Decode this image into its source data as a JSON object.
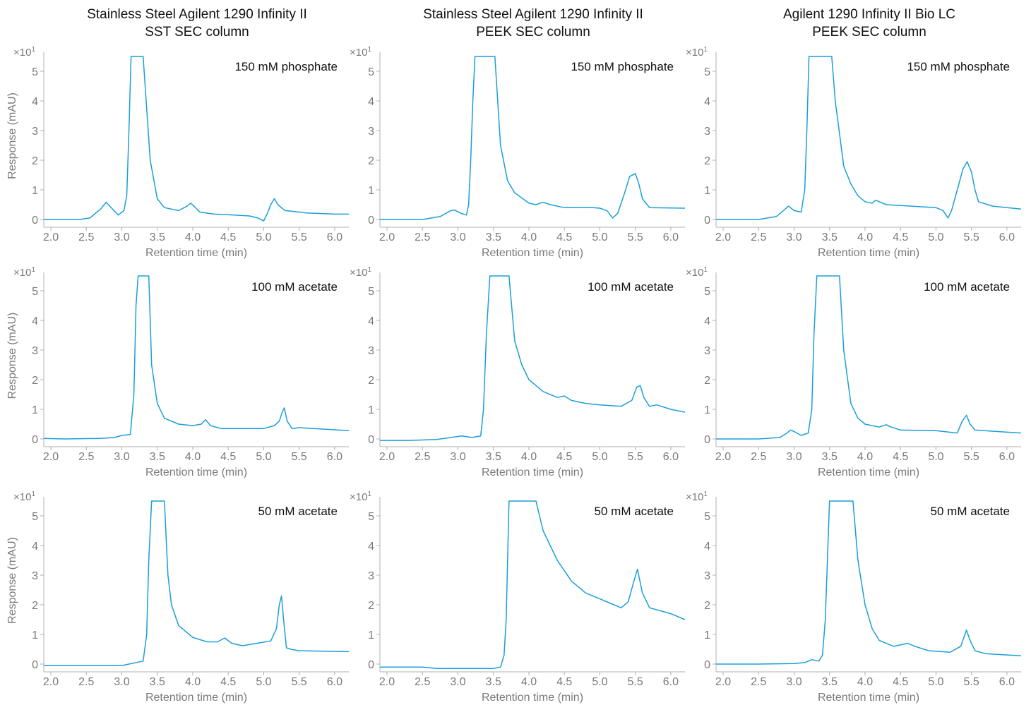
{
  "figure": {
    "columns": [
      {
        "title_line1": "Stainless Steel Agilent 1290 Infinity II",
        "title_line2": "SST SEC column"
      },
      {
        "title_line1": "Stainless Steel Agilent 1290 Infinity II",
        "title_line2": "PEEK SEC column"
      },
      {
        "title_line1": "Agilent 1290 Infinity II Bio LC",
        "title_line2": "PEEK SEC column"
      }
    ],
    "rows": [
      "150 mM phosphate",
      "100 mM acetate",
      "50 mM acetate"
    ],
    "xlabel": "Retention time (min)",
    "ylabel": "Response (mAU)",
    "sci_prefix": "×10",
    "sci_exp": "1",
    "line_color": "#1a9fd8"
  },
  "chart_data": [
    {
      "type": "line",
      "row": 0,
      "col": 0,
      "annotation": "150 mM phosphate",
      "xlim": [
        1.9,
        6.2
      ],
      "ylim": [
        0,
        5.5
      ],
      "xticks": [
        2.0,
        2.5,
        3.0,
        3.5,
        4.0,
        4.5,
        5.0,
        5.5,
        6.0
      ],
      "yticks": [
        0,
        1,
        2,
        3,
        4,
        5
      ],
      "x": [
        1.9,
        2.4,
        2.55,
        2.7,
        2.78,
        2.85,
        2.95,
        3.03,
        3.07,
        3.1,
        3.13,
        3.3,
        3.4,
        3.5,
        3.6,
        3.8,
        3.92,
        3.97,
        4.03,
        4.1,
        4.3,
        4.5,
        4.8,
        4.92,
        5.0,
        5.05,
        5.1,
        5.15,
        5.2,
        5.3,
        5.5,
        5.6,
        6.0,
        6.2
      ],
      "y": [
        0,
        0,
        0.05,
        0.35,
        0.58,
        0.4,
        0.15,
        0.3,
        0.8,
        3.0,
        5.5,
        5.5,
        2.0,
        0.7,
        0.4,
        0.3,
        0.45,
        0.55,
        0.42,
        0.25,
        0.18,
        0.16,
        0.12,
        0.05,
        -0.05,
        0.2,
        0.5,
        0.7,
        0.5,
        0.3,
        0.25,
        0.22,
        0.18,
        0.18
      ]
    },
    {
      "type": "line",
      "row": 0,
      "col": 1,
      "annotation": "150 mM phosphate",
      "xlim": [
        1.9,
        6.2
      ],
      "ylim": [
        0,
        5.5
      ],
      "xticks": [
        2.0,
        2.5,
        3.0,
        3.5,
        4.0,
        4.5,
        5.0,
        5.5,
        6.0
      ],
      "yticks": [
        0,
        1,
        2,
        3,
        4,
        5
      ],
      "x": [
        1.9,
        2.5,
        2.75,
        2.9,
        2.95,
        3.05,
        3.12,
        3.15,
        3.18,
        3.21,
        3.24,
        3.52,
        3.6,
        3.7,
        3.8,
        4.0,
        4.1,
        4.2,
        4.3,
        4.5,
        4.9,
        5.0,
        5.1,
        5.18,
        5.25,
        5.35,
        5.42,
        5.5,
        5.55,
        5.6,
        5.7,
        6.2
      ],
      "y": [
        0,
        0,
        0.1,
        0.3,
        0.32,
        0.2,
        0.15,
        0.5,
        2.0,
        4.0,
        5.5,
        5.5,
        2.5,
        1.3,
        0.9,
        0.55,
        0.5,
        0.58,
        0.5,
        0.4,
        0.4,
        0.38,
        0.3,
        0.05,
        0.2,
        0.9,
        1.45,
        1.55,
        1.2,
        0.7,
        0.4,
        0.38
      ]
    },
    {
      "type": "line",
      "row": 0,
      "col": 2,
      "annotation": "150 mM phosphate",
      "xlim": [
        1.9,
        6.2
      ],
      "ylim": [
        0,
        5.5
      ],
      "xticks": [
        2.0,
        2.5,
        3.0,
        3.5,
        4.0,
        4.5,
        5.0,
        5.5,
        6.0
      ],
      "yticks": [
        0,
        1,
        2,
        3,
        4,
        5
      ],
      "x": [
        1.9,
        2.5,
        2.75,
        2.85,
        2.92,
        3.0,
        3.1,
        3.15,
        3.18,
        3.21,
        3.53,
        3.58,
        3.7,
        3.8,
        3.9,
        4.0,
        4.1,
        4.15,
        4.2,
        4.3,
        5.0,
        5.1,
        5.17,
        5.22,
        5.3,
        5.38,
        5.44,
        5.5,
        5.55,
        5.6,
        5.8,
        6.2
      ],
      "y": [
        0,
        0,
        0.1,
        0.3,
        0.45,
        0.3,
        0.25,
        1.0,
        3.0,
        5.5,
        5.5,
        4.0,
        1.8,
        1.2,
        0.8,
        0.6,
        0.55,
        0.65,
        0.6,
        0.5,
        0.4,
        0.3,
        0.05,
        0.3,
        1.0,
        1.7,
        1.95,
        1.6,
        1.0,
        0.6,
        0.45,
        0.35
      ]
    },
    {
      "type": "line",
      "row": 1,
      "col": 0,
      "annotation": "100 mM acetate",
      "xlim": [
        1.9,
        6.2
      ],
      "ylim": [
        0,
        5.5
      ],
      "xticks": [
        2.0,
        2.5,
        3.0,
        3.5,
        4.0,
        4.5,
        5.0,
        5.5,
        6.0
      ],
      "yticks": [
        0,
        1,
        2,
        3,
        4,
        5
      ],
      "x": [
        1.9,
        2.2,
        2.7,
        2.9,
        3.0,
        3.12,
        3.17,
        3.2,
        3.23,
        3.38,
        3.42,
        3.5,
        3.6,
        3.8,
        4.0,
        4.12,
        4.18,
        4.25,
        4.4,
        5.0,
        5.15,
        5.22,
        5.26,
        5.29,
        5.33,
        5.4,
        5.5,
        6.2
      ],
      "y": [
        0.02,
        0.0,
        0.02,
        0.05,
        0.12,
        0.15,
        1.5,
        4.5,
        5.5,
        5.5,
        2.5,
        1.2,
        0.7,
        0.5,
        0.45,
        0.5,
        0.65,
        0.45,
        0.35,
        0.35,
        0.45,
        0.6,
        0.9,
        1.05,
        0.6,
        0.35,
        0.38,
        0.28
      ]
    },
    {
      "type": "line",
      "row": 1,
      "col": 1,
      "annotation": "100 mM acetate",
      "xlim": [
        1.9,
        6.2
      ],
      "ylim": [
        0,
        5.5
      ],
      "xticks": [
        2.0,
        2.5,
        3.0,
        3.5,
        4.0,
        4.5,
        5.0,
        5.5,
        6.0
      ],
      "yticks": [
        0,
        1,
        2,
        3,
        4,
        5
      ],
      "x": [
        1.9,
        2.3,
        2.7,
        2.9,
        3.05,
        3.2,
        3.32,
        3.36,
        3.4,
        3.45,
        3.72,
        3.8,
        3.9,
        4.0,
        4.2,
        4.4,
        4.5,
        4.6,
        4.8,
        5.0,
        5.3,
        5.45,
        5.52,
        5.57,
        5.62,
        5.7,
        5.8,
        6.0,
        6.2
      ],
      "y": [
        -0.05,
        -0.05,
        -0.02,
        0.05,
        0.1,
        0.05,
        0.1,
        1.0,
        3.5,
        5.5,
        5.5,
        3.3,
        2.5,
        2.0,
        1.6,
        1.4,
        1.45,
        1.3,
        1.2,
        1.15,
        1.1,
        1.3,
        1.75,
        1.8,
        1.4,
        1.1,
        1.15,
        1.0,
        0.9
      ]
    },
    {
      "type": "line",
      "row": 1,
      "col": 2,
      "annotation": "100 mM acetate",
      "xlim": [
        1.9,
        6.2
      ],
      "ylim": [
        0,
        5.5
      ],
      "xticks": [
        2.0,
        2.5,
        3.0,
        3.5,
        4.0,
        4.5,
        5.0,
        5.5,
        6.0
      ],
      "yticks": [
        0,
        1,
        2,
        3,
        4,
        5
      ],
      "x": [
        1.9,
        2.5,
        2.8,
        2.9,
        2.95,
        3.0,
        3.1,
        3.2,
        3.25,
        3.28,
        3.32,
        3.64,
        3.7,
        3.8,
        3.9,
        4.0,
        4.2,
        4.3,
        4.35,
        4.5,
        5.0,
        5.3,
        5.37,
        5.43,
        5.48,
        5.55,
        6.2
      ],
      "y": [
        0,
        0,
        0.05,
        0.2,
        0.3,
        0.25,
        0.12,
        0.2,
        1.0,
        3.5,
        5.5,
        5.5,
        3.0,
        1.2,
        0.7,
        0.5,
        0.4,
        0.48,
        0.42,
        0.3,
        0.28,
        0.2,
        0.6,
        0.8,
        0.5,
        0.3,
        0.2
      ]
    },
    {
      "type": "line",
      "row": 2,
      "col": 0,
      "annotation": "50 mM acetate",
      "xlim": [
        1.9,
        6.2
      ],
      "ylim": [
        0,
        5.5
      ],
      "xticks": [
        2.0,
        2.5,
        3.0,
        3.5,
        4.0,
        4.5,
        5.0,
        5.5,
        6.0
      ],
      "yticks": [
        0,
        1,
        2,
        3,
        4,
        5
      ],
      "x": [
        1.9,
        2.5,
        3.0,
        3.3,
        3.35,
        3.38,
        3.42,
        3.6,
        3.65,
        3.7,
        3.8,
        4.0,
        4.2,
        4.35,
        4.45,
        4.55,
        4.7,
        4.9,
        5.1,
        5.18,
        5.22,
        5.25,
        5.28,
        5.32,
        5.38,
        5.5,
        6.2
      ],
      "y": [
        -0.05,
        -0.05,
        -0.05,
        0.1,
        1.0,
        3.5,
        5.5,
        5.5,
        3.0,
        2.0,
        1.3,
        0.9,
        0.75,
        0.75,
        0.88,
        0.7,
        0.62,
        0.7,
        0.78,
        1.2,
        2.0,
        2.3,
        1.5,
        0.55,
        0.5,
        0.45,
        0.42
      ]
    },
    {
      "type": "line",
      "row": 2,
      "col": 1,
      "annotation": "50 mM acetate",
      "xlim": [
        1.9,
        6.2
      ],
      "ylim": [
        0,
        5.5
      ],
      "xticks": [
        2.0,
        2.5,
        3.0,
        3.5,
        4.0,
        4.5,
        5.0,
        5.5,
        6.0
      ],
      "yticks": [
        0,
        1,
        2,
        3,
        4,
        5
      ],
      "x": [
        1.9,
        2.5,
        2.7,
        3.5,
        3.6,
        3.65,
        3.68,
        3.7,
        3.72,
        4.1,
        4.2,
        4.4,
        4.6,
        4.8,
        5.0,
        5.2,
        5.3,
        5.4,
        5.48,
        5.53,
        5.6,
        5.7,
        6.0,
        6.2
      ],
      "y": [
        -0.1,
        -0.1,
        -0.15,
        -0.15,
        -0.1,
        0.3,
        1.5,
        3.5,
        5.5,
        5.5,
        4.5,
        3.5,
        2.8,
        2.4,
        2.2,
        2.0,
        1.9,
        2.1,
        2.8,
        3.2,
        2.4,
        1.9,
        1.7,
        1.5
      ]
    },
    {
      "type": "line",
      "row": 2,
      "col": 2,
      "annotation": "50 mM acetate",
      "xlim": [
        1.9,
        6.2
      ],
      "ylim": [
        0,
        5.5
      ],
      "xticks": [
        2.0,
        2.5,
        3.0,
        3.5,
        4.0,
        4.5,
        5.0,
        5.5,
        6.0
      ],
      "yticks": [
        0,
        1,
        2,
        3,
        4,
        5
      ],
      "x": [
        1.9,
        2.5,
        3.0,
        3.15,
        3.25,
        3.35,
        3.4,
        3.44,
        3.47,
        3.5,
        3.83,
        3.9,
        4.0,
        4.1,
        4.2,
        4.4,
        4.6,
        4.7,
        4.9,
        5.2,
        5.35,
        5.43,
        5.48,
        5.55,
        5.7,
        6.2
      ],
      "y": [
        0,
        0,
        0.02,
        0.05,
        0.15,
        0.1,
        0.3,
        1.5,
        3.5,
        5.5,
        5.5,
        3.5,
        2.0,
        1.2,
        0.8,
        0.6,
        0.7,
        0.6,
        0.45,
        0.4,
        0.6,
        1.15,
        0.8,
        0.45,
        0.35,
        0.28
      ]
    }
  ]
}
